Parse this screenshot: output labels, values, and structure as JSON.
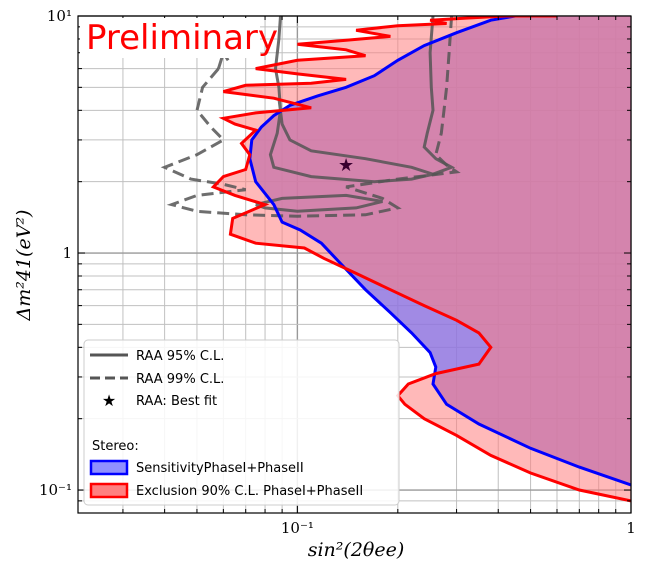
{
  "chart_data": {
    "type": "contour",
    "title": "",
    "watermark": "Preliminary",
    "xlabel": "sin²(2θee)",
    "ylabel": "Δm²41(eV²)",
    "xscale": "log",
    "yscale": "log",
    "xlim": [
      0.022,
      1
    ],
    "ylim": [
      0.08,
      10
    ],
    "grid": true,
    "legend_position": "lower-left",
    "x_ticks": [
      {
        "value": 0.1,
        "label": "10⁻¹"
      },
      {
        "value": 1,
        "label": "1"
      }
    ],
    "y_ticks": [
      {
        "value": 0.1,
        "label": "10⁻¹"
      },
      {
        "value": 1,
        "label": "1"
      },
      {
        "value": 10,
        "label": "10¹"
      }
    ],
    "legend": {
      "raa_header": "",
      "raa95_label": "RAA 95% C.L.",
      "raa99_label": "RAA 99% C.L.",
      "bestfit_label": "RAA: Best fit",
      "stereo_header": "Stereo:",
      "sensitivity_label": "SensitivityPhaseI+PhaseII",
      "exclusion_label": "Exclusion 90% C.L. PhaseI+PhaseII"
    },
    "best_fit": {
      "x": 0.14,
      "y": 2.35
    },
    "series": [
      {
        "name": "SensitivityPhaseI+PhaseII",
        "color": "#0000ff",
        "fill": "#9090ff",
        "points": [
          [
            1.0,
            0.105
          ],
          [
            0.7,
            0.125
          ],
          [
            0.5,
            0.15
          ],
          [
            0.35,
            0.19
          ],
          [
            0.28,
            0.23
          ],
          [
            0.255,
            0.28
          ],
          [
            0.26,
            0.33
          ],
          [
            0.25,
            0.38
          ],
          [
            0.22,
            0.46
          ],
          [
            0.19,
            0.56
          ],
          [
            0.16,
            0.7
          ],
          [
            0.135,
            0.9
          ],
          [
            0.118,
            1.1
          ],
          [
            0.102,
            1.25
          ],
          [
            0.09,
            1.35
          ],
          [
            0.085,
            1.6
          ],
          [
            0.075,
            2.0
          ],
          [
            0.072,
            2.5
          ],
          [
            0.073,
            3.0
          ],
          [
            0.078,
            3.4
          ],
          [
            0.085,
            3.8
          ],
          [
            0.095,
            4.2
          ],
          [
            0.115,
            4.6
          ],
          [
            0.14,
            5.0
          ],
          [
            0.17,
            5.6
          ],
          [
            0.2,
            6.5
          ],
          [
            0.24,
            7.5
          ],
          [
            0.3,
            8.5
          ],
          [
            0.38,
            9.6
          ],
          [
            0.45,
            10.0
          ]
        ]
      },
      {
        "name": "Exclusion 90% C.L. PhaseI+PhaseII",
        "color": "#ff0000",
        "fill": "#ff8080",
        "points": [
          [
            1.0,
            0.09
          ],
          [
            0.7,
            0.1
          ],
          [
            0.5,
            0.118
          ],
          [
            0.38,
            0.14
          ],
          [
            0.3,
            0.17
          ],
          [
            0.24,
            0.2
          ],
          [
            0.21,
            0.23
          ],
          [
            0.2,
            0.25
          ],
          [
            0.215,
            0.28
          ],
          [
            0.26,
            0.31
          ],
          [
            0.35,
            0.34
          ],
          [
            0.38,
            0.4
          ],
          [
            0.35,
            0.46
          ],
          [
            0.3,
            0.52
          ],
          [
            0.24,
            0.6
          ],
          [
            0.19,
            0.7
          ],
          [
            0.15,
            0.82
          ],
          [
            0.12,
            0.95
          ],
          [
            0.105,
            1.05
          ],
          [
            0.075,
            1.1
          ],
          [
            0.063,
            1.2
          ],
          [
            0.064,
            1.4
          ],
          [
            0.08,
            1.6
          ],
          [
            0.065,
            1.75
          ],
          [
            0.056,
            1.9
          ],
          [
            0.06,
            2.1
          ],
          [
            0.07,
            2.25
          ],
          [
            0.072,
            2.6
          ],
          [
            0.068,
            2.9
          ],
          [
            0.075,
            3.3
          ],
          [
            0.065,
            3.5
          ],
          [
            0.06,
            3.7
          ],
          [
            0.075,
            3.9
          ],
          [
            0.11,
            4.1
          ],
          [
            0.085,
            4.5
          ],
          [
            0.06,
            4.8
          ],
          [
            0.07,
            5.1
          ],
          [
            0.11,
            5.2
          ],
          [
            0.14,
            5.4
          ],
          [
            0.1,
            5.7
          ],
          [
            0.075,
            6.0
          ],
          [
            0.1,
            6.5
          ],
          [
            0.16,
            6.8
          ],
          [
            0.14,
            7.2
          ],
          [
            0.1,
            7.6
          ],
          [
            0.14,
            7.9
          ],
          [
            0.19,
            8.2
          ],
          [
            0.15,
            8.7
          ],
          [
            0.2,
            9.1
          ],
          [
            0.28,
            9.3
          ],
          [
            0.25,
            9.6
          ],
          [
            0.32,
            9.8
          ],
          [
            0.42,
            10.0
          ],
          [
            0.6,
            10.0
          ]
        ]
      }
    ],
    "contours": [
      {
        "name": "RAA 95% C.L.",
        "style": "solid",
        "color": "#555555"
      },
      {
        "name": "RAA 99% C.L.",
        "style": "dashed",
        "color": "#555555"
      }
    ]
  }
}
